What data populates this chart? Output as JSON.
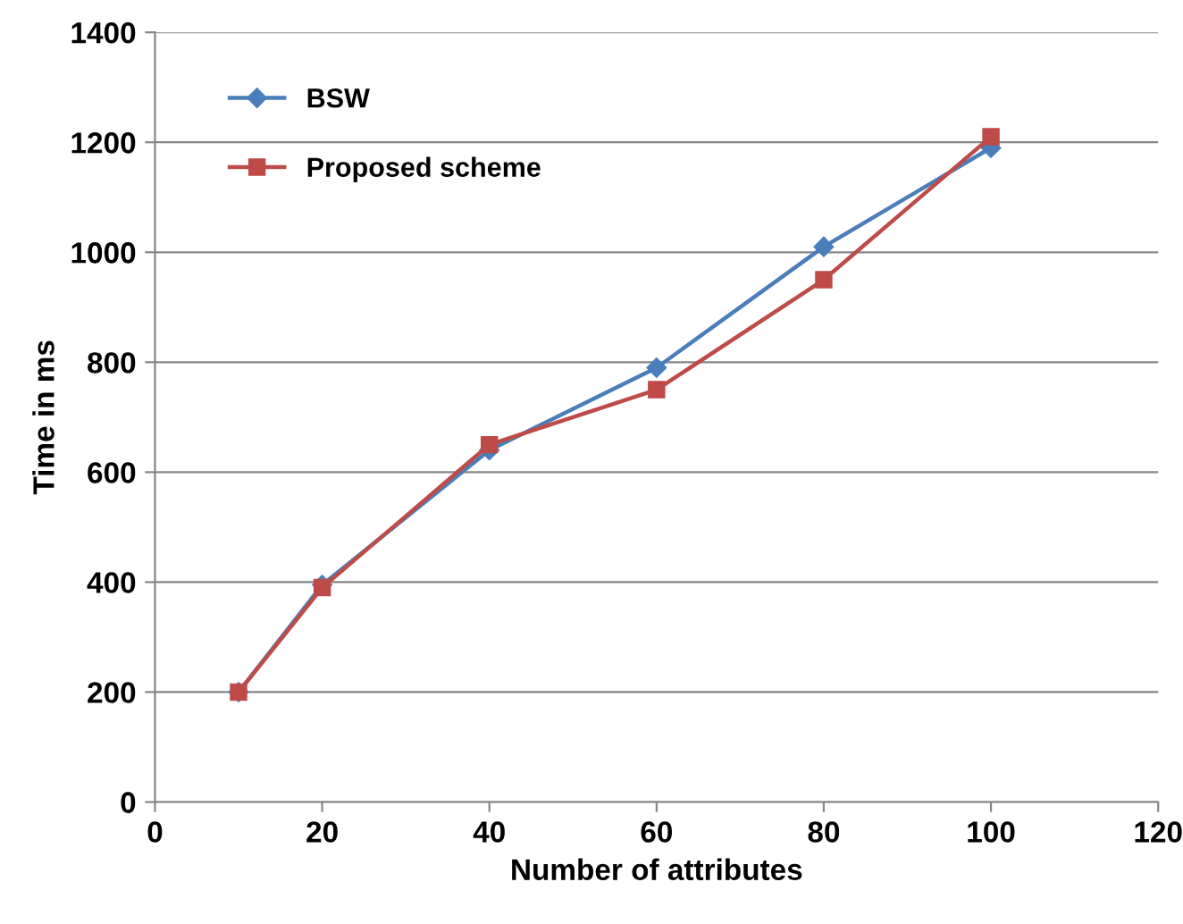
{
  "chart_data": {
    "type": "line",
    "xlabel": "Number of attributes",
    "ylabel": "Time in ms",
    "x": [
      10,
      20,
      40,
      60,
      80,
      100
    ],
    "series": [
      {
        "name": "BSW",
        "color": "#4a7ebb",
        "marker": "diamond",
        "values": [
          200,
          395,
          640,
          790,
          1010,
          1190
        ]
      },
      {
        "name": "Proposed scheme",
        "color": "#be4b48",
        "marker": "square",
        "values": [
          200,
          390,
          650,
          750,
          950,
          1210
        ]
      }
    ],
    "xlim": [
      0,
      120
    ],
    "xticks": [
      0,
      20,
      40,
      60,
      80,
      100,
      120
    ],
    "ylim": [
      0,
      1400
    ],
    "yticks": [
      0,
      200,
      400,
      600,
      800,
      1000,
      1200,
      1400
    ],
    "grid": "y",
    "legend": "top left",
    "line_style": "solid"
  }
}
